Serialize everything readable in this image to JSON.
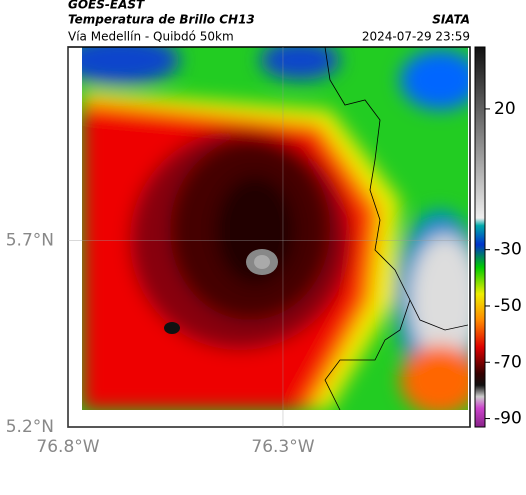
{
  "header": {
    "title": "GOES-EAST",
    "subtitle": "Temperatura de Brillo CH13",
    "region": "Vía Medellín - Quibdó 50km",
    "source": "SIATA",
    "datetime": "2024-07-29 23:59"
  },
  "map": {
    "xlim": [
      -76.8,
      -75.865
    ],
    "ylim": [
      5.2,
      6.22
    ],
    "xticks": [
      {
        "value": -76.8,
        "label": "76.8°W"
      },
      {
        "value": -76.3,
        "label": "76.3°W"
      }
    ],
    "yticks": [
      {
        "value": 5.2,
        "label": "5.2°N"
      },
      {
        "value": 5.7,
        "label": "5.7°N"
      }
    ],
    "grid": true
  },
  "colorbar": {
    "lim": [
      -93,
      42
    ],
    "ticks": [
      20,
      -30,
      -50,
      -70,
      -90
    ]
  }
}
